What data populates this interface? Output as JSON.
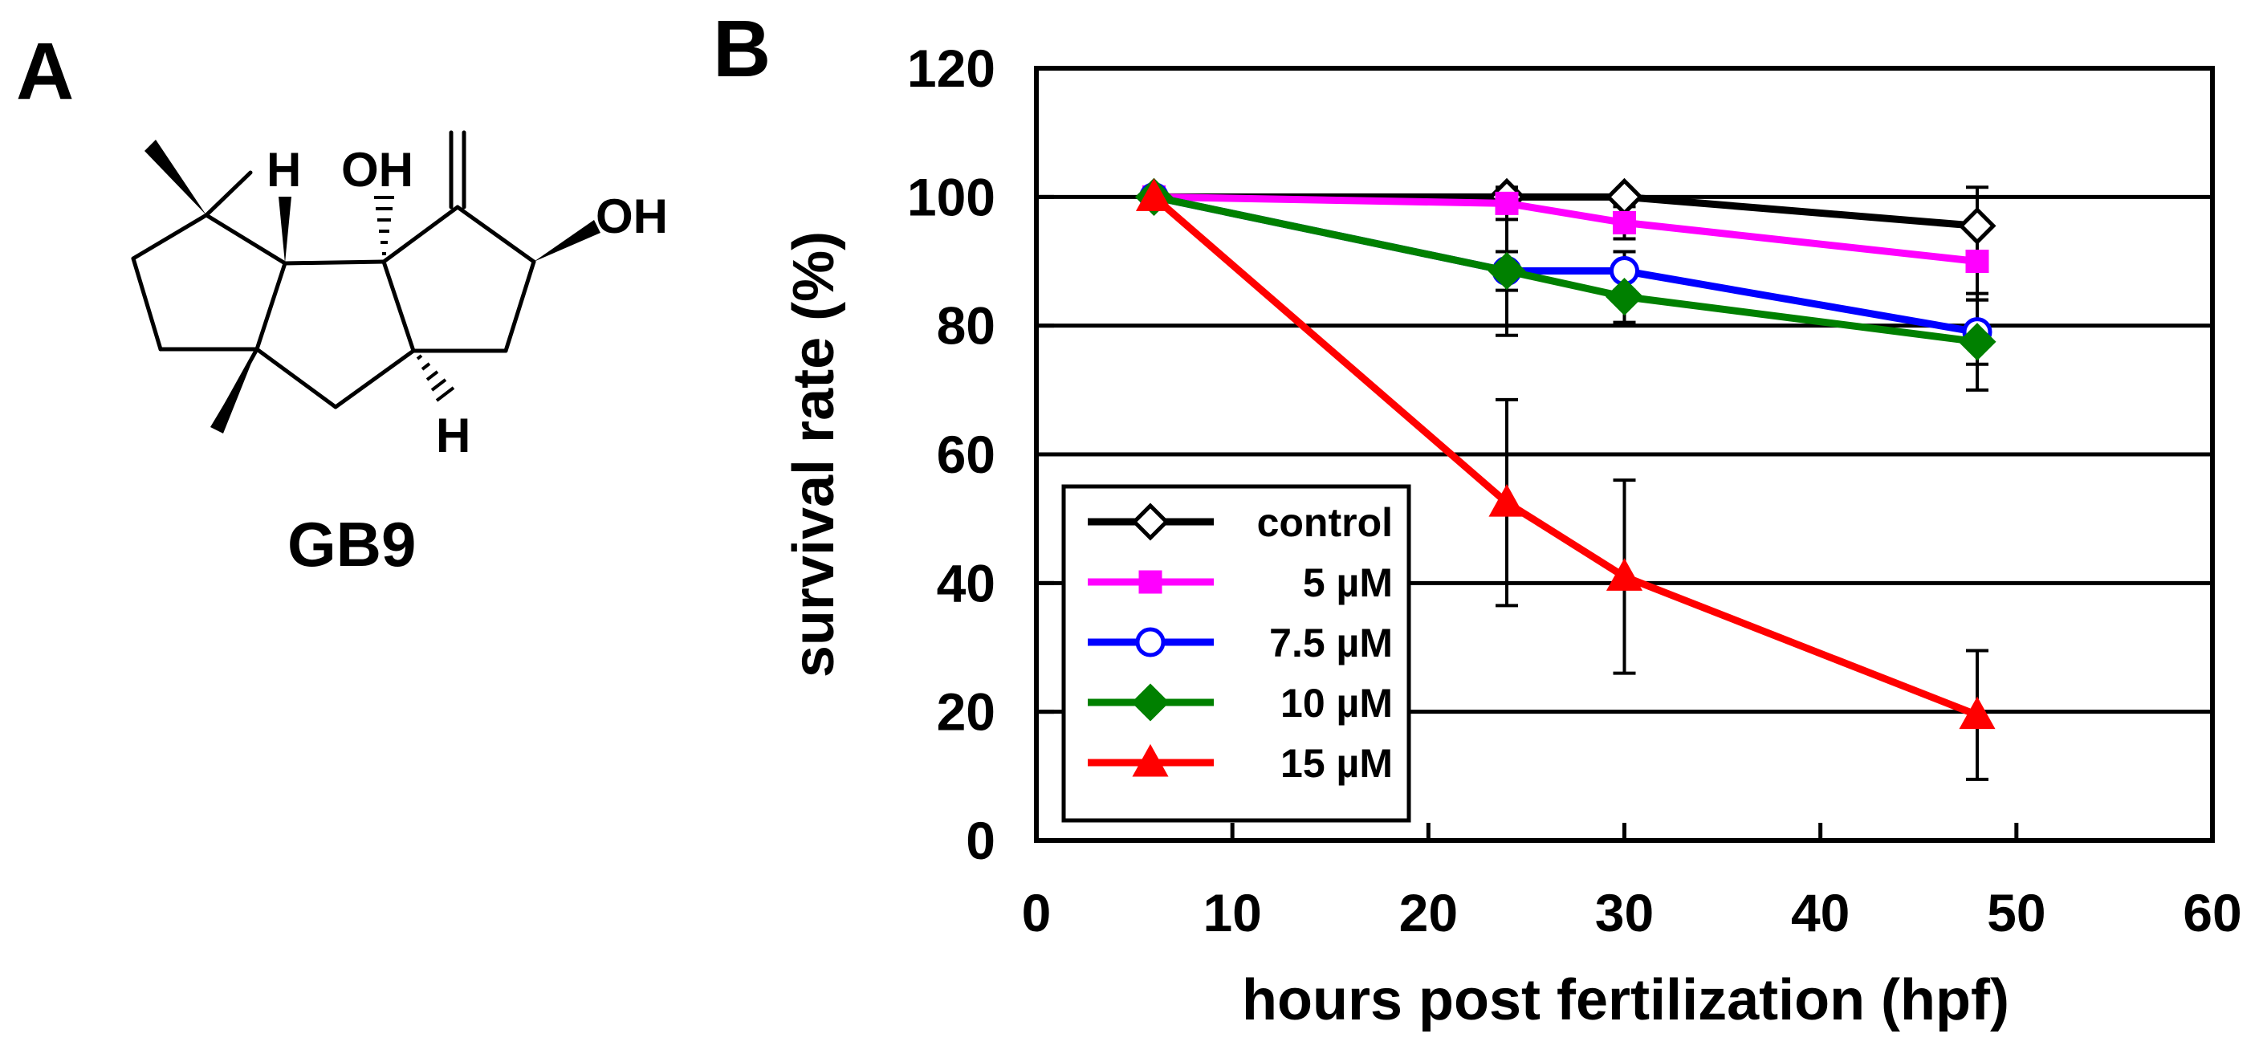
{
  "panels": {
    "a_label": "A",
    "b_label": "B"
  },
  "molecule": {
    "name": "GB9",
    "atoms": [
      "H",
      "OH",
      "OH",
      "H"
    ]
  },
  "chart_data": {
    "type": "line",
    "title": "",
    "xlabel": "hours post fertilization (hpf)",
    "ylabel": "survival rate (%)",
    "xlim": [
      0,
      60
    ],
    "ylim": [
      0,
      120
    ],
    "xticks": [
      0,
      10,
      20,
      30,
      40,
      50,
      60
    ],
    "yticks": [
      0,
      20,
      40,
      60,
      80,
      100,
      120
    ],
    "grid": "horizontal",
    "legend_position": "bottom-left",
    "x": [
      6,
      24,
      30,
      48
    ],
    "series": [
      {
        "name": "control",
        "color": "#000000",
        "marker": "open-diamond",
        "values": [
          100,
          100,
          100,
          95.5
        ],
        "errors": [
          0,
          0,
          0,
          6
        ]
      },
      {
        "name": "5 µM",
        "color": "#ff00ff",
        "marker": "filled-square",
        "values": [
          100,
          99,
          96,
          90
        ],
        "errors": [
          0,
          2.5,
          2.5,
          6
        ]
      },
      {
        "name": "7.5 µM",
        "color": "#0000ff",
        "marker": "open-circle",
        "values": [
          100,
          88.5,
          88.5,
          79
        ],
        "errors": [
          0,
          3,
          3,
          5
        ]
      },
      {
        "name": "10 µM",
        "color": "#008000",
        "marker": "filled-diamond",
        "values": [
          100,
          88.5,
          84.5,
          77.5
        ],
        "errors": [
          0,
          10,
          4,
          7.5
        ]
      },
      {
        "name": "15 µM",
        "color": "#ff0000",
        "marker": "filled-triangle",
        "values": [
          100,
          52.5,
          41,
          19.5
        ],
        "errors": [
          0,
          16,
          15,
          10
        ]
      }
    ]
  }
}
